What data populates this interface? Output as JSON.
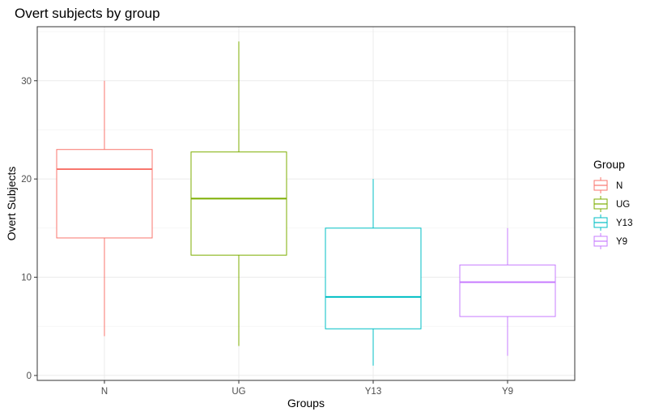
{
  "chart_data": {
    "type": "boxplot",
    "title": "Overt subjects by group",
    "xlabel": "Groups",
    "ylabel": "Overt Subjects",
    "ylim": [
      -0.5,
      35.5
    ],
    "yticks": [
      0,
      10,
      20,
      30
    ],
    "grid": true,
    "legend": {
      "title": "Group",
      "placement": "right"
    },
    "categories": [
      "N",
      "UG",
      "Y13",
      "Y9"
    ],
    "boxes": [
      {
        "category": "N",
        "color": "#F8766D",
        "min": 4,
        "q1": 14,
        "median": 21,
        "q3": 23,
        "max": 30
      },
      {
        "category": "UG",
        "color": "#7CAE00",
        "min": 3,
        "q1": 12.25,
        "median": 18,
        "q3": 22.75,
        "max": 34
      },
      {
        "category": "Y13",
        "color": "#00BFC4",
        "min": 1,
        "q1": 4.75,
        "median": 8,
        "q3": 15,
        "max": 20
      },
      {
        "category": "Y9",
        "color": "#C77CFF",
        "min": 2,
        "q1": 6,
        "median": 9.5,
        "q3": 11.25,
        "max": 15
      }
    ]
  }
}
